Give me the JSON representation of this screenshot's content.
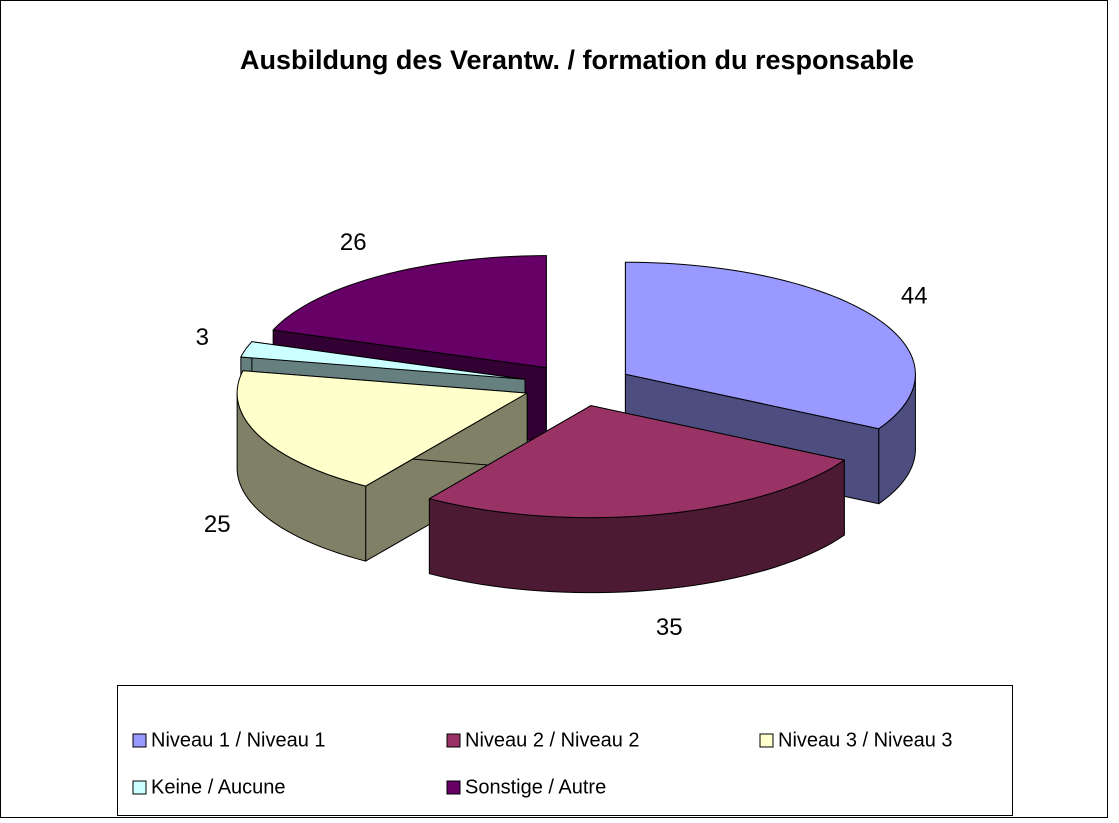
{
  "chart_data": {
    "type": "pie3d",
    "title": "Ausbildung des Verantw. / formation du responsable",
    "categories": [
      "Niveau 1 / Niveau 1",
      "Niveau 2 / Niveau 2",
      "Niveau 3 / Niveau 3",
      "Keine / Aucune",
      "Sonstige / Autre"
    ],
    "values": [
      44,
      35,
      25,
      3,
      26
    ],
    "colors": [
      "#9999ff",
      "#993366",
      "#ffffcc",
      "#ccffff",
      "#660066"
    ],
    "legend": "bottom",
    "exploded": true
  }
}
